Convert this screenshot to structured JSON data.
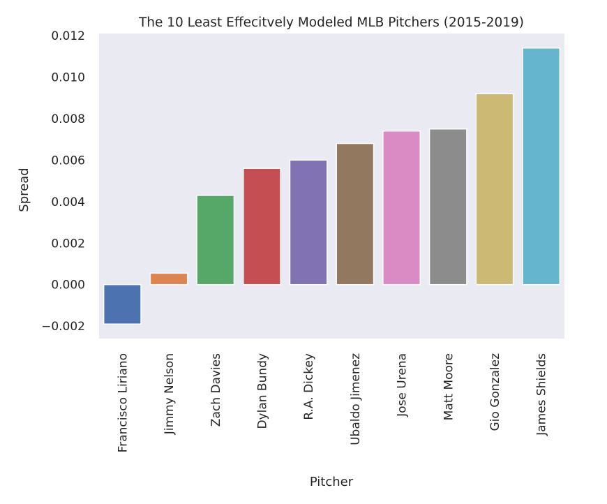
{
  "chart_data": {
    "type": "bar",
    "title": "The 10 Least Effecitvely Modeled MLB Pitchers (2015-2019)",
    "xlabel": "Pitcher",
    "ylabel": "Spread",
    "ylim": [
      -0.0026,
      0.0121
    ],
    "yticks": [
      "0.012",
      "0.010",
      "0.008",
      "0.006",
      "0.004",
      "0.002",
      "0.000",
      "−0.002"
    ],
    "ytick_values": [
      0.012,
      0.01,
      0.008,
      0.006,
      0.004,
      0.002,
      0.0,
      -0.002
    ],
    "grid": false,
    "background": "#eaeaf2",
    "categories": [
      "Francisco Liriano",
      "Jimmy Nelson",
      "Zach Davies",
      "Dylan Bundy",
      "R.A. Dickey",
      "Ubaldo Jimenez",
      "Jose Urena",
      "Matt Moore",
      "Gio Gonzalez",
      "James Shields"
    ],
    "values": [
      -0.0019,
      0.00055,
      0.0043,
      0.0056,
      0.006,
      0.0068,
      0.0074,
      0.0075,
      0.0092,
      0.0114
    ],
    "colors": [
      "#4c72b0",
      "#dd8452",
      "#55a868",
      "#c44e52",
      "#8172b3",
      "#937860",
      "#da8bc3",
      "#8c8c8c",
      "#ccb974",
      "#64b5cd"
    ]
  }
}
